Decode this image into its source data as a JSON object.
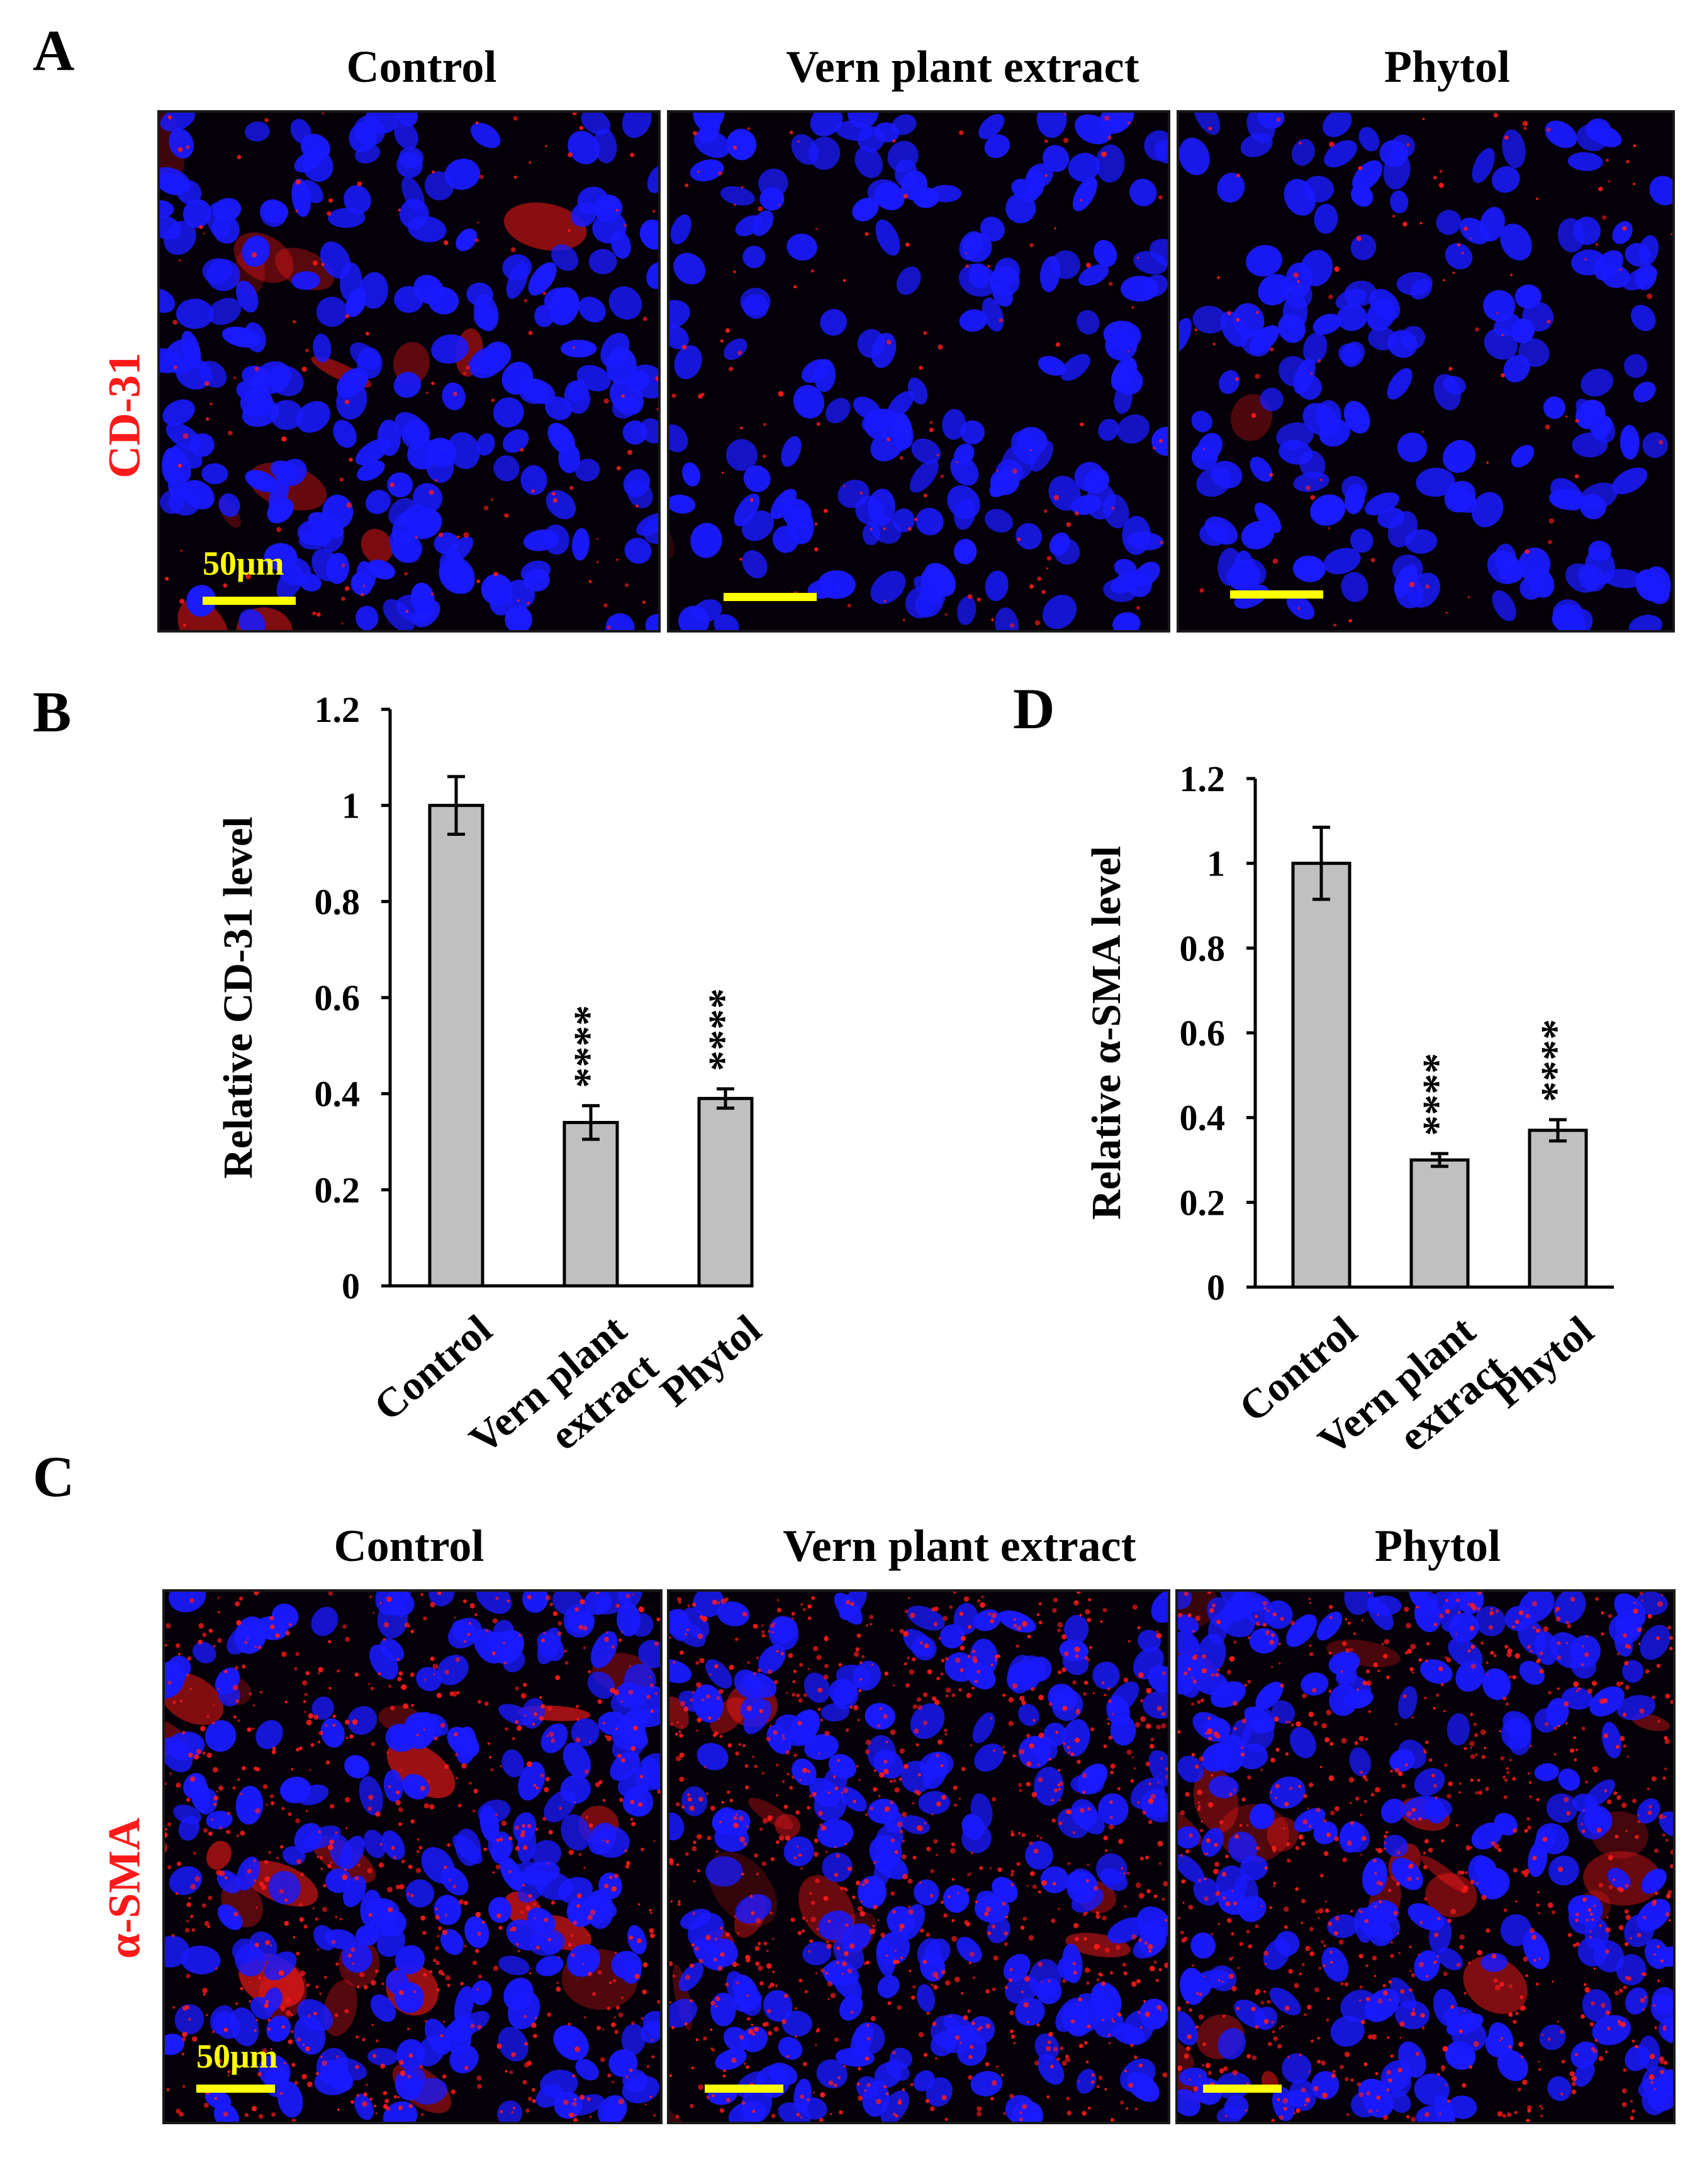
{
  "panels": {
    "A": {
      "letter": "A",
      "row_label": "CD-31",
      "columns": [
        "Control",
        "Vern plant extract",
        "Phytol"
      ],
      "scale_label": "50μm"
    },
    "B": {
      "letter": "B"
    },
    "C": {
      "letter": "C",
      "row_label": "α-SMA",
      "columns": [
        "Control",
        "Vern plant extract",
        "Phytol"
      ],
      "scale_label": "50μm"
    },
    "D": {
      "letter": "D"
    }
  },
  "colors": {
    "bar_fill": "#c0c0c0",
    "nucleus": "#1a1aff",
    "stain": "#ff1a1a",
    "scale_bar": "#ffff00"
  },
  "chart_data": [
    {
      "type": "bar",
      "title": "",
      "ylabel": "Relative CD-31 level",
      "xlabel": "",
      "categories": [
        [
          "Control"
        ],
        [
          "Vern plant",
          "extract"
        ],
        [
          "Phytol"
        ]
      ],
      "values": [
        1.0,
        0.34,
        0.39
      ],
      "errors": [
        0.06,
        0.035,
        0.02
      ],
      "significance": [
        "",
        "****",
        "****"
      ],
      "ylim": [
        0,
        1.2
      ],
      "yticks": [
        0,
        0.2,
        0.4,
        0.6,
        0.8,
        1,
        1.2
      ],
      "ytick_labels": [
        "0",
        "0.2",
        "0.4",
        "0.6",
        "0.8",
        "1",
        "1.2"
      ],
      "grid": false,
      "legend": "none"
    },
    {
      "type": "bar",
      "title": "",
      "ylabel": "Relative α-SMA  level",
      "xlabel": "",
      "categories": [
        [
          "Control"
        ],
        [
          "Vern plant",
          "extract"
        ],
        [
          "Phytol"
        ]
      ],
      "values": [
        1.0,
        0.3,
        0.37
      ],
      "errors": [
        0.085,
        0.015,
        0.025
      ],
      "significance": [
        "",
        "****",
        "****"
      ],
      "ylim": [
        0,
        1.2
      ],
      "yticks": [
        0,
        0.2,
        0.4,
        0.6,
        0.8,
        1,
        1.2
      ],
      "ytick_labels": [
        "0",
        "0.2",
        "0.4",
        "0.6",
        "0.8",
        "1",
        "1.2"
      ],
      "grid": false,
      "legend": "none"
    }
  ]
}
